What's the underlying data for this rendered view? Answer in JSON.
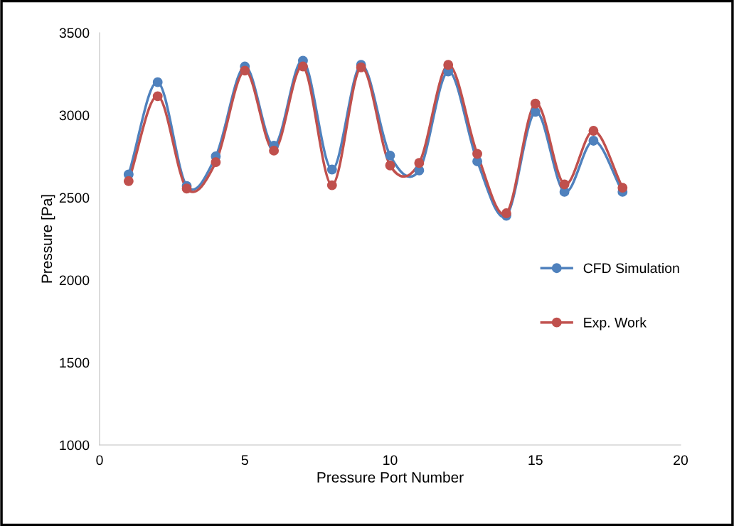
{
  "chart_data": {
    "type": "line",
    "xlabel": "Pressure Port Number",
    "ylabel": "Pressure [Pa]",
    "x": [
      1,
      2,
      3,
      4,
      5,
      6,
      7,
      8,
      9,
      10,
      11,
      12,
      13,
      14,
      15,
      16,
      17,
      18
    ],
    "series": [
      {
        "name": "CFD Simulation",
        "color": "#4f81bd",
        "values": [
          2640,
          3200,
          2570,
          2750,
          3295,
          2815,
          3330,
          2670,
          3305,
          2755,
          2665,
          3265,
          2720,
          2390,
          3020,
          2535,
          2845,
          2535
        ]
      },
      {
        "name": "Exp. Work",
        "color": "#c0504d",
        "values": [
          2600,
          3115,
          2555,
          2715,
          3270,
          2785,
          3295,
          2575,
          3290,
          2695,
          2710,
          3305,
          2765,
          2405,
          3070,
          2580,
          2905,
          2560
        ]
      }
    ],
    "xlim": [
      0,
      20
    ],
    "xticks": [
      0,
      5,
      10,
      15,
      20
    ],
    "ylim": [
      1000,
      3500
    ],
    "yticks": [
      1000,
      1500,
      2000,
      2500,
      3000,
      3500
    ],
    "grid": false,
    "legend": "right",
    "marker": "circle",
    "line_style": "solid"
  }
}
